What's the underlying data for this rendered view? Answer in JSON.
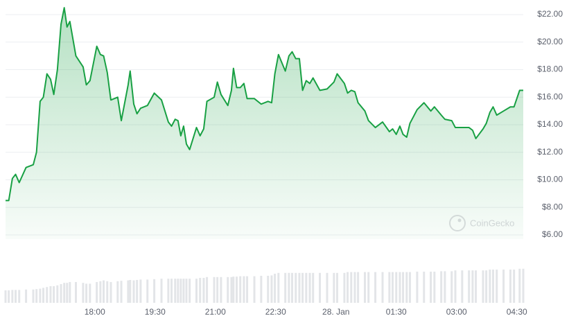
{
  "chart_data": {
    "type": "area-line",
    "watermark": "CoinGecko",
    "color": "#18a043",
    "x": [
      15.78,
      15.86,
      15.95,
      16.03,
      16.12,
      16.29,
      16.47,
      16.55,
      16.64,
      16.72,
      16.81,
      16.9,
      16.98,
      17.07,
      17.16,
      17.24,
      17.31,
      17.38,
      17.53,
      17.71,
      17.79,
      17.88,
      18.05,
      18.14,
      18.22,
      18.31,
      18.4,
      18.57,
      18.66,
      18.83,
      18.88,
      18.97,
      19.05,
      19.14,
      19.31,
      19.48,
      19.66,
      19.83,
      19.91,
      20.0,
      20.07,
      20.14,
      20.21,
      20.28,
      20.36,
      20.53,
      20.62,
      20.71,
      20.79,
      20.97,
      21.05,
      21.14,
      21.31,
      21.4,
      21.45,
      21.53,
      21.62,
      21.71,
      21.79,
      21.97,
      22.14,
      22.31,
      22.4,
      22.48,
      22.57,
      22.74,
      22.83,
      22.91,
      23.0,
      23.09,
      23.17,
      23.26,
      23.35,
      23.43,
      23.6,
      23.78,
      23.95,
      24.03,
      24.21,
      24.29,
      24.38,
      24.47,
      24.55,
      24.72,
      24.81,
      24.98,
      25.16,
      25.33,
      25.41,
      25.5,
      25.59,
      25.67,
      25.76,
      25.84,
      26.02,
      26.19,
      26.36,
      26.45,
      26.62,
      26.71,
      26.88,
      26.97,
      27.14,
      27.31,
      27.4,
      27.48,
      27.66,
      27.74,
      27.83,
      27.91,
      28.0,
      28.17,
      28.34,
      28.43,
      28.57,
      28.66
    ],
    "values": [
      8.5,
      8.5,
      10.1,
      10.4,
      9.8,
      10.9,
      11.1,
      12.0,
      15.7,
      16.0,
      17.7,
      17.3,
      16.2,
      18.0,
      21.3,
      22.5,
      21.1,
      21.5,
      19.0,
      18.2,
      16.9,
      17.2,
      19.7,
      19.1,
      19.0,
      17.8,
      15.8,
      16.0,
      14.3,
      16.9,
      17.9,
      15.5,
      14.8,
      15.2,
      15.4,
      16.3,
      15.8,
      14.2,
      13.9,
      14.4,
      14.3,
      13.2,
      13.9,
      12.6,
      12.2,
      13.8,
      13.2,
      13.7,
      15.7,
      16.0,
      17.1,
      16.2,
      15.4,
      16.5,
      18.1,
      16.7,
      16.7,
      17.0,
      15.9,
      15.9,
      15.5,
      15.7,
      15.6,
      17.7,
      19.1,
      17.9,
      19.0,
      19.3,
      18.8,
      18.8,
      16.5,
      17.2,
      17.0,
      17.4,
      16.5,
      16.6,
      17.1,
      17.7,
      17.0,
      16.3,
      16.5,
      16.4,
      15.6,
      15.0,
      14.3,
      13.8,
      14.2,
      13.5,
      13.7,
      13.3,
      13.9,
      13.3,
      13.1,
      14.1,
      15.1,
      15.6,
      15.0,
      15.3,
      14.7,
      14.4,
      14.3,
      13.8,
      13.8,
      13.8,
      13.6,
      13.0,
      13.7,
      14.1,
      14.9,
      15.3,
      14.7,
      15.0,
      15.3,
      15.3,
      16.5,
      16.5
    ],
    "volume": [
      30,
      30,
      31,
      31,
      31,
      32,
      32,
      33,
      34,
      36,
      38,
      40,
      40,
      42,
      45,
      48,
      48,
      50,
      50,
      48,
      46,
      46,
      50,
      52,
      54,
      52,
      50,
      52,
      53,
      54,
      55,
      54,
      55,
      56,
      56,
      57,
      58,
      58,
      58,
      58,
      58,
      58,
      58,
      58,
      58,
      58,
      60,
      60,
      62,
      62,
      62,
      62,
      62,
      62,
      63,
      63,
      64,
      64,
      64,
      64,
      65,
      65,
      66,
      70,
      72,
      72,
      72,
      72,
      72,
      72,
      72,
      72,
      72,
      72,
      72,
      72,
      72,
      72,
      72,
      74,
      74,
      74,
      74,
      74,
      74,
      74,
      74,
      74,
      74,
      74,
      74,
      74,
      74,
      74,
      75,
      75,
      75,
      75,
      76,
      76,
      76,
      78,
      78,
      78,
      78,
      78,
      78,
      78,
      80,
      80,
      80,
      80,
      80,
      80,
      82,
      82
    ],
    "volume_ylim": [
      0,
      100
    ],
    "xlim": [
      15.78,
      28.66
    ],
    "xticks": [
      {
        "value": 18,
        "label": "18:00"
      },
      {
        "value": 19.5,
        "label": "19:30"
      },
      {
        "value": 21,
        "label": "21:00"
      },
      {
        "value": 22.5,
        "label": "22:30"
      },
      {
        "value": 24,
        "label": "28. Jan"
      },
      {
        "value": 25.5,
        "label": "01:30"
      },
      {
        "value": 27,
        "label": "03:00"
      },
      {
        "value": 28.5,
        "label": "04:30"
      }
    ],
    "ylim": [
      5.7,
      23.06
    ],
    "yticks": [
      {
        "value": 6,
        "label": "$6.00"
      },
      {
        "value": 8,
        "label": "$8.00"
      },
      {
        "value": 10,
        "label": "$10.00"
      },
      {
        "value": 12,
        "label": "$12.00"
      },
      {
        "value": 14,
        "label": "$14.00"
      },
      {
        "value": 16,
        "label": "$16.00"
      },
      {
        "value": 18,
        "label": "$18.00"
      },
      {
        "value": 20,
        "label": "$20.00"
      },
      {
        "value": 22,
        "label": "$22.00"
      }
    ],
    "grid": true
  }
}
